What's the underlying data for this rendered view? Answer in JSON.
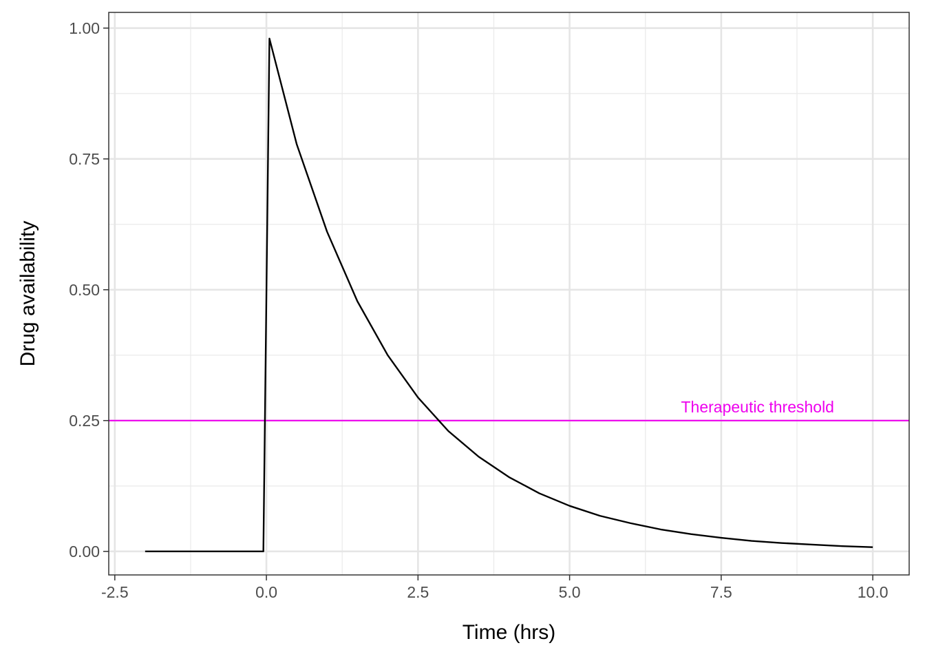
{
  "chart_data": {
    "type": "line",
    "title": "",
    "xlabel": "Time (hrs)",
    "ylabel": "Drug availability",
    "xlim": [
      -2.6,
      10.6
    ],
    "ylim": [
      -0.045,
      1.03
    ],
    "x_ticks": [
      -2.5,
      0.0,
      2.5,
      5.0,
      7.5,
      10.0
    ],
    "x_tick_labels": [
      "-2.5",
      "0.0",
      "2.5",
      "5.0",
      "7.5",
      "10.0"
    ],
    "y_ticks": [
      0.0,
      0.25,
      0.5,
      0.75,
      1.0
    ],
    "y_tick_labels": [
      "0.00",
      "0.25",
      "0.50",
      "0.75",
      "1.00"
    ],
    "grid": true,
    "series": [
      {
        "color": "#000000",
        "x": [
          -2.0,
          -0.05,
          0.05,
          0.5,
          1.0,
          1.5,
          2.0,
          2.5,
          3.0,
          3.5,
          4.0,
          4.5,
          5.0,
          5.5,
          6.0,
          6.5,
          7.0,
          7.5,
          8.0,
          8.5,
          9.0,
          9.5,
          10.0
        ],
        "y": [
          0.0,
          0.0,
          0.98,
          0.778,
          0.611,
          0.478,
          0.375,
          0.294,
          0.23,
          0.181,
          0.142,
          0.111,
          0.087,
          0.068,
          0.054,
          0.042,
          0.033,
          0.026,
          0.02,
          0.016,
          0.013,
          0.01,
          0.008
        ]
      }
    ],
    "threshold": {
      "y": 0.25,
      "label": "Therapeutic threshold",
      "label_x": 8.1,
      "color": "#ee00ee"
    }
  }
}
